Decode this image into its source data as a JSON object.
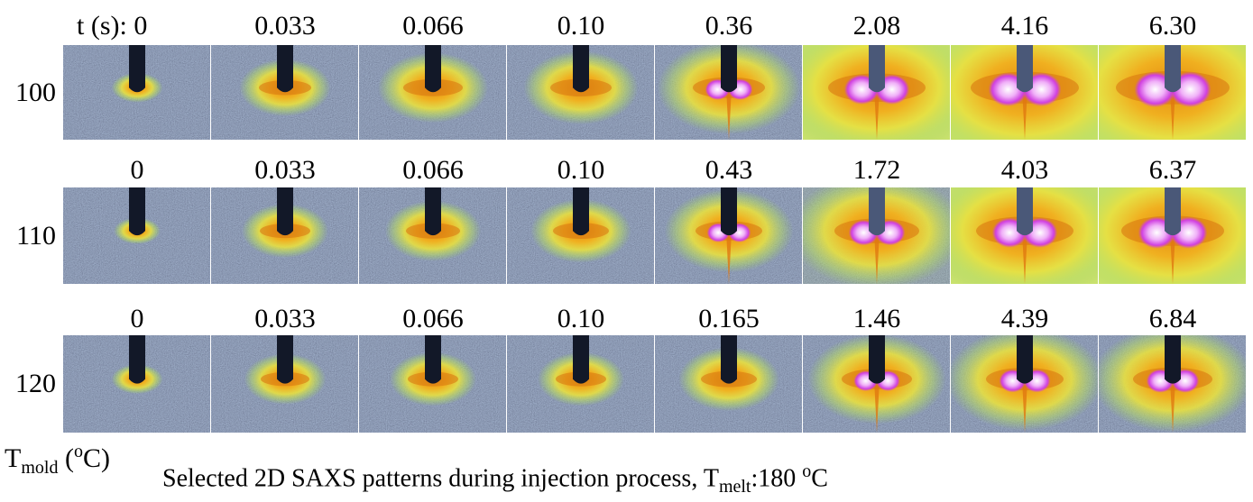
{
  "time_label": "t (s):",
  "rows": [
    {
      "label": "100",
      "times": [
        "0",
        "0.033",
        "0.066",
        "0.10",
        "0.36",
        "2.08",
        "4.16",
        "6.30"
      ]
    },
    {
      "label": "110",
      "times": [
        "0",
        "0.033",
        "0.066",
        "0.10",
        "0.43",
        "1.72",
        "4.03",
        "6.37"
      ]
    },
    {
      "label": "120",
      "times": [
        "0",
        "0.033",
        "0.066",
        "0.10",
        "0.165",
        "1.46",
        "4.39",
        "6.84"
      ]
    }
  ],
  "y_axis_label": {
    "symbol": "T",
    "subscript": "mold",
    "unit_open": " (",
    "superscript": "o",
    "unit_close": "C)"
  },
  "caption": {
    "text": "Selected 2D SAXS patterns during injection process, T",
    "subscript": "melt",
    "value": ":180 ",
    "superscript": "o",
    "unit": "C"
  }
}
